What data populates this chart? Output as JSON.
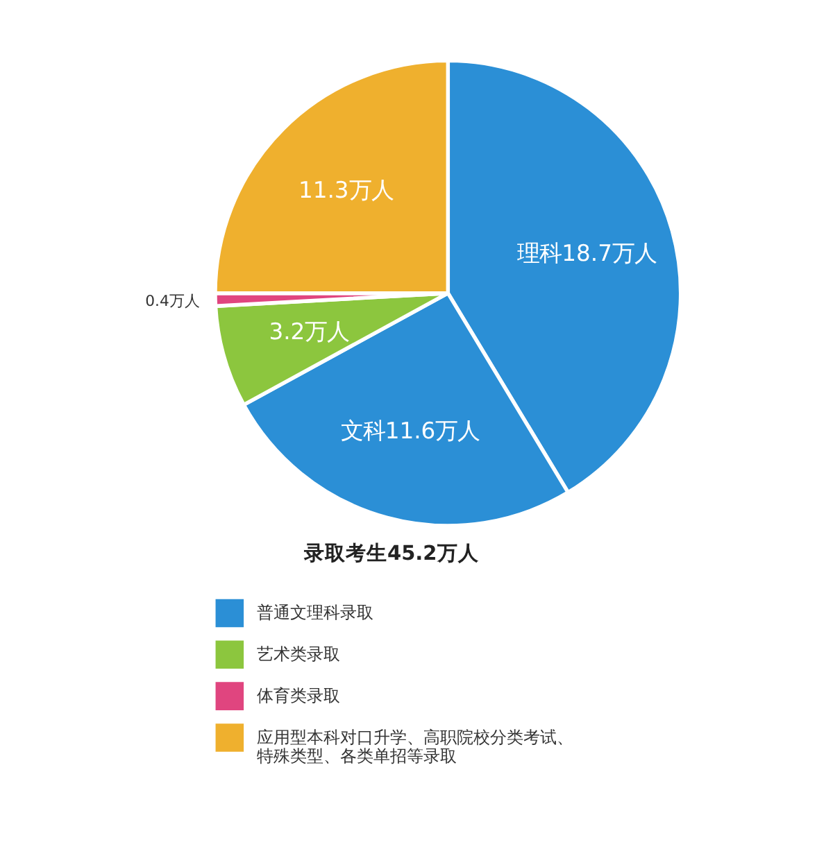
{
  "chart_data": {
    "type": "pie",
    "title": "录取考生45.2万人",
    "categories": [
      "普通文理科录取",
      null,
      "艺术类录取",
      "体育类录取",
      "应用型本科对口升学、高职院校分类考试、特殊类型、各类单招等录取"
    ],
    "values": [
      18.7,
      11.6,
      3.2,
      0.4,
      11.3
    ],
    "colors": [
      "#2b8fd6",
      "#2b8fd6",
      "#8cc63e",
      "#e0457f",
      "#efb02e"
    ],
    "value_labels": [
      "理科18.7万人",
      "文科11.6万人",
      "3.2万人",
      "0.4万人",
      "11.3万人"
    ],
    "legend": "bottom"
  }
}
